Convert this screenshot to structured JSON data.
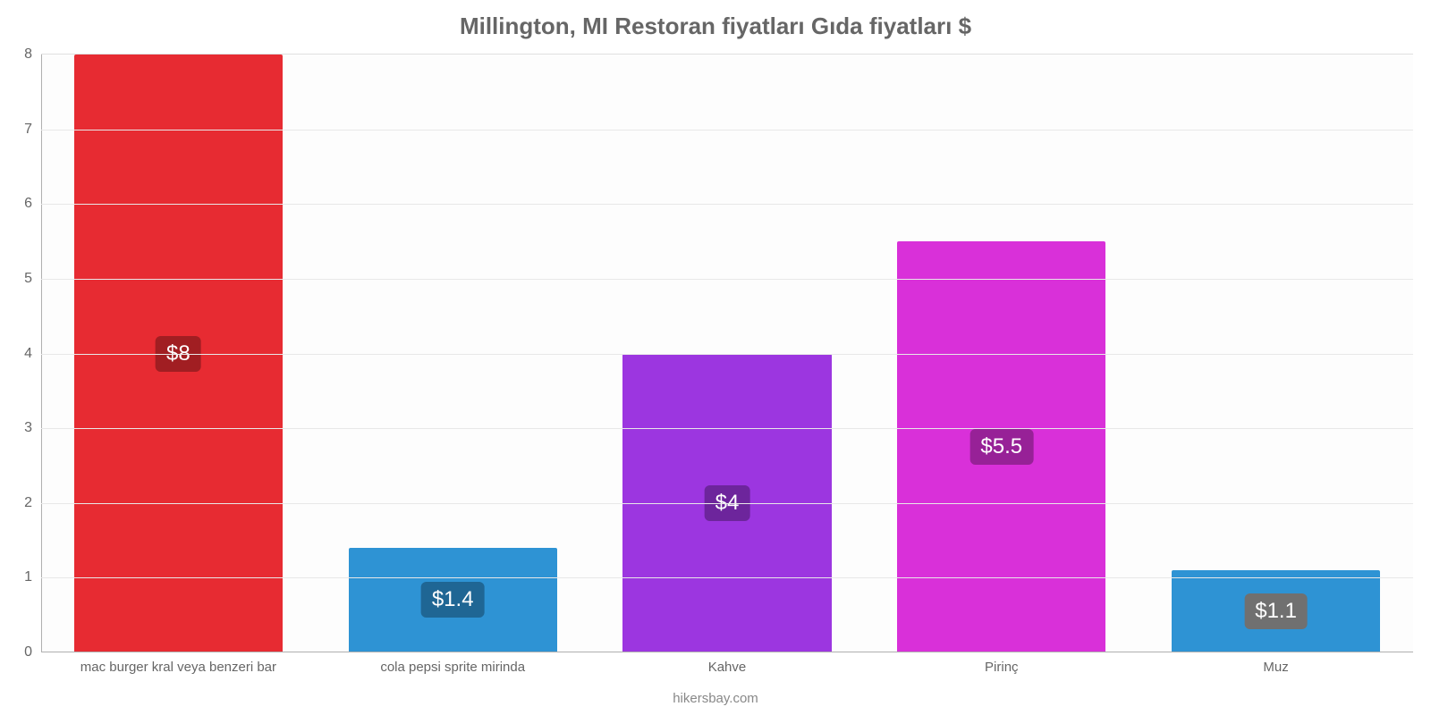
{
  "chart": {
    "type": "bar",
    "title": "Millington, MI Restoran fiyatları Gıda fiyatları $",
    "title_fontsize": 26,
    "title_color": "#666666",
    "background_color": "#ffffff",
    "plot_background": "#fdfdfd",
    "grid_color": "#e8e8e8",
    "axis_color": "#b0b0b0",
    "label_color": "#666666",
    "y": {
      "min": 0,
      "max": 8,
      "ticks": [
        0,
        1,
        2,
        3,
        4,
        5,
        6,
        7,
        8
      ],
      "tick_fontsize": 16
    },
    "x_tick_fontsize": 15,
    "bar_width_pct": 76,
    "categories": [
      {
        "label": "mac burger kral veya benzeri bar",
        "value": 8,
        "display": "$8",
        "bar_color": "#e72b32",
        "badge_bg": "#a11e22"
      },
      {
        "label": "cola pepsi sprite mirinda",
        "value": 1.4,
        "display": "$1.4",
        "bar_color": "#2e93d4",
        "badge_bg": "#1f6694"
      },
      {
        "label": "Kahve",
        "value": 4,
        "display": "$4",
        "bar_color": "#9c36e0",
        "badge_bg": "#6d259c"
      },
      {
        "label": "Pirinç",
        "value": 5.5,
        "display": "$5.5",
        "bar_color": "#d930d9",
        "badge_bg": "#972197"
      },
      {
        "label": "Muz",
        "value": 1.1,
        "display": "$1.1",
        "bar_color": "#2e93d4",
        "badge_bg": "#707070"
      }
    ],
    "footer": "hikersbay.com",
    "footer_color": "#888888",
    "footer_fontsize": 15
  }
}
